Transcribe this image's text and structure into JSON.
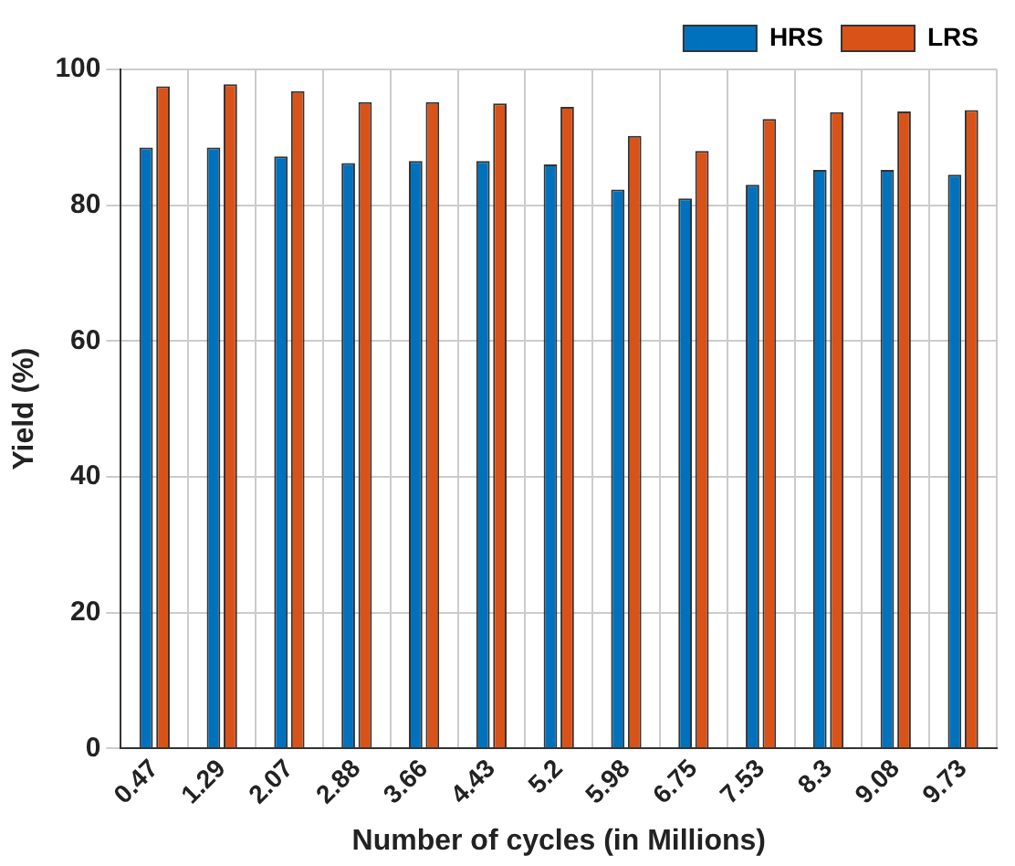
{
  "chart_data": {
    "type": "bar",
    "xlabel": "Number of cycles (in Millions)",
    "ylabel": "Yield (%)",
    "categories": [
      "0.47",
      "1.29",
      "2.07",
      "2.88",
      "3.66",
      "4.43",
      "5.2",
      "5.98",
      "6.75",
      "7.53",
      "8.3",
      "9.08",
      "9.73"
    ],
    "series": [
      {
        "name": "HRS",
        "color": "#0072bd",
        "values": [
          88.5,
          88.5,
          87.2,
          86.2,
          86.5,
          86.5,
          86,
          82.3,
          81,
          83,
          85.2,
          85.2,
          84.5
        ]
      },
      {
        "name": "LRS",
        "color": "#d95319",
        "values": [
          97.5,
          97.8,
          96.8,
          95.2,
          95.2,
          95,
          94.5,
          90.2,
          88,
          92.7,
          93.7,
          93.8,
          94
        ]
      }
    ],
    "ylim": [
      0,
      100
    ],
    "yticks": [
      0,
      20,
      40,
      60,
      80,
      100
    ],
    "grid": true,
    "legend": "top right"
  }
}
